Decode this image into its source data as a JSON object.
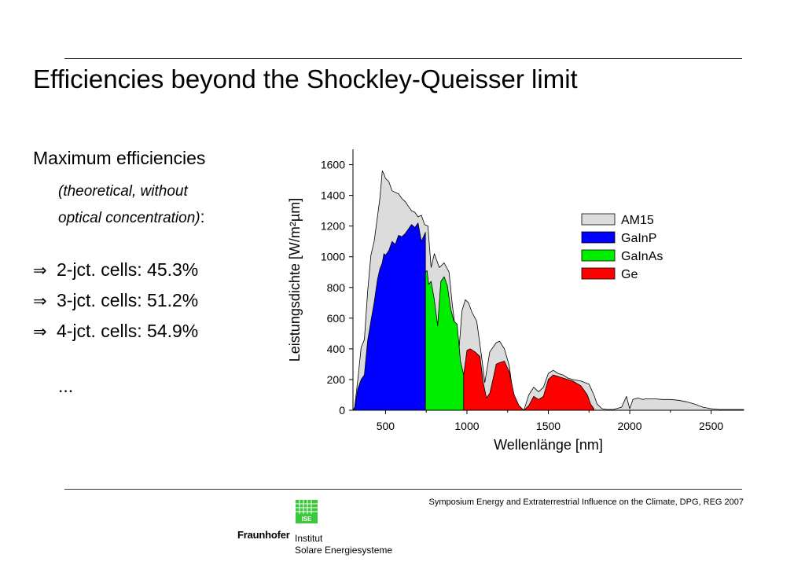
{
  "slide": {
    "title": "Efficiencies beyond the Shockley-Queisser limit",
    "heading": "Maximum efficiencies",
    "subtext_line1": "(theoretical, without",
    "subtext_line2": "optical concentration)",
    "subtext_colon": ":",
    "bullet_symbol": "⇒",
    "bullets": [
      "2-jct. cells: 45.3%",
      "3-jct. cells: 51.2%",
      "4-jct. cells: 54.9%"
    ],
    "ellipsis": "...",
    "footer": "Symposium Energy and Extraterrestrial Influence on the Climate, DPG, REG 2007"
  },
  "logo": {
    "badge": "ISE",
    "name": "Fraunhofer",
    "line1": "Institut",
    "line2": "Solare Energiesysteme"
  },
  "colors": {
    "am15": "#dcdcdc",
    "gainp": "#0000ff",
    "gainas": "#00ee00",
    "ge": "#ff0000",
    "logo_green": "#3cc83c"
  },
  "chart_data": {
    "type": "area",
    "xlabel": "Wellenlänge [nm]",
    "ylabel": "Leistungsdichte [W/m²µm]",
    "xlim": [
      300,
      2700
    ],
    "ylim": [
      0,
      1700
    ],
    "xticks": [
      500,
      1000,
      1500,
      2000,
      2500
    ],
    "yticks": [
      0,
      200,
      400,
      600,
      800,
      1000,
      1200,
      1400,
      1600
    ],
    "legend_position": "right",
    "grid": false,
    "series": [
      {
        "name": "AM15",
        "color": "#dcdcdc",
        "x": [
          300,
          310,
          330,
          350,
          370,
          390,
          410,
          430,
          450,
          465,
          480,
          490,
          500,
          520,
          540,
          560,
          580,
          600,
          620,
          640,
          660,
          680,
          700,
          720,
          740,
          760,
          780,
          800,
          830,
          860,
          890,
          910,
          930,
          950,
          970,
          990,
          1010,
          1030,
          1060,
          1090,
          1110,
          1140,
          1180,
          1200,
          1230,
          1260,
          1290,
          1320,
          1350,
          1380,
          1410,
          1440,
          1470,
          1500,
          1530,
          1560,
          1590,
          1620,
          1650,
          1700,
          1750,
          1780,
          1800,
          1830,
          1860,
          1900,
          1950,
          1980,
          2000,
          2020,
          2050,
          2080,
          2100,
          2150,
          2200,
          2250,
          2300,
          2350,
          2400,
          2450,
          2500,
          2550,
          2600,
          2700
        ],
        "values": [
          0,
          20,
          200,
          410,
          460,
          770,
          1010,
          1100,
          1260,
          1380,
          1560,
          1540,
          1510,
          1490,
          1430,
          1420,
          1410,
          1380,
          1360,
          1330,
          1300,
          1290,
          1260,
          1270,
          1210,
          1200,
          930,
          1020,
          930,
          960,
          900,
          690,
          520,
          380,
          650,
          720,
          700,
          640,
          580,
          350,
          180,
          380,
          440,
          450,
          400,
          290,
          50,
          20,
          0,
          100,
          150,
          120,
          150,
          240,
          260,
          240,
          230,
          210,
          200,
          190,
          170,
          100,
          40,
          10,
          5,
          5,
          20,
          90,
          10,
          70,
          80,
          70,
          75,
          75,
          70,
          70,
          65,
          55,
          40,
          20,
          10,
          5,
          5,
          5
        ]
      },
      {
        "name": "GaInP",
        "color": "#0000ff",
        "x": [
          300,
          310,
          330,
          350,
          370,
          390,
          410,
          430,
          450,
          465,
          480,
          490,
          500,
          520,
          540,
          560,
          580,
          600,
          620,
          640,
          660,
          680,
          700,
          720,
          745
        ],
        "values": [
          0,
          10,
          140,
          200,
          230,
          450,
          580,
          700,
          850,
          920,
          960,
          1020,
          1010,
          1040,
          1100,
          1080,
          1140,
          1130,
          1150,
          1180,
          1210,
          1190,
          1220,
          1100,
          1160
        ]
      },
      {
        "name": "GaInAs",
        "color": "#00ee00",
        "x": [
          745,
          755,
          765,
          780,
          800,
          820,
          840,
          860,
          880,
          900,
          920,
          940,
          960,
          980
        ],
        "values": [
          900,
          910,
          820,
          840,
          720,
          550,
          840,
          870,
          810,
          660,
          580,
          560,
          320,
          230
        ]
      },
      {
        "name": "Ge",
        "color": "#ff0000",
        "x": [
          980,
          1000,
          1020,
          1050,
          1080,
          1100,
          1120,
          1140,
          1160,
          1180,
          1200,
          1230,
          1260,
          1290,
          1320,
          1350,
          1380,
          1410,
          1440,
          1470,
          1500,
          1530,
          1560,
          1590,
          1620,
          1650,
          1700,
          1740,
          1760,
          1780
        ],
        "values": [
          230,
          390,
          400,
          380,
          350,
          180,
          80,
          110,
          200,
          300,
          310,
          320,
          250,
          100,
          30,
          0,
          30,
          90,
          70,
          90,
          200,
          230,
          220,
          210,
          200,
          190,
          160,
          100,
          40,
          10
        ]
      }
    ]
  }
}
